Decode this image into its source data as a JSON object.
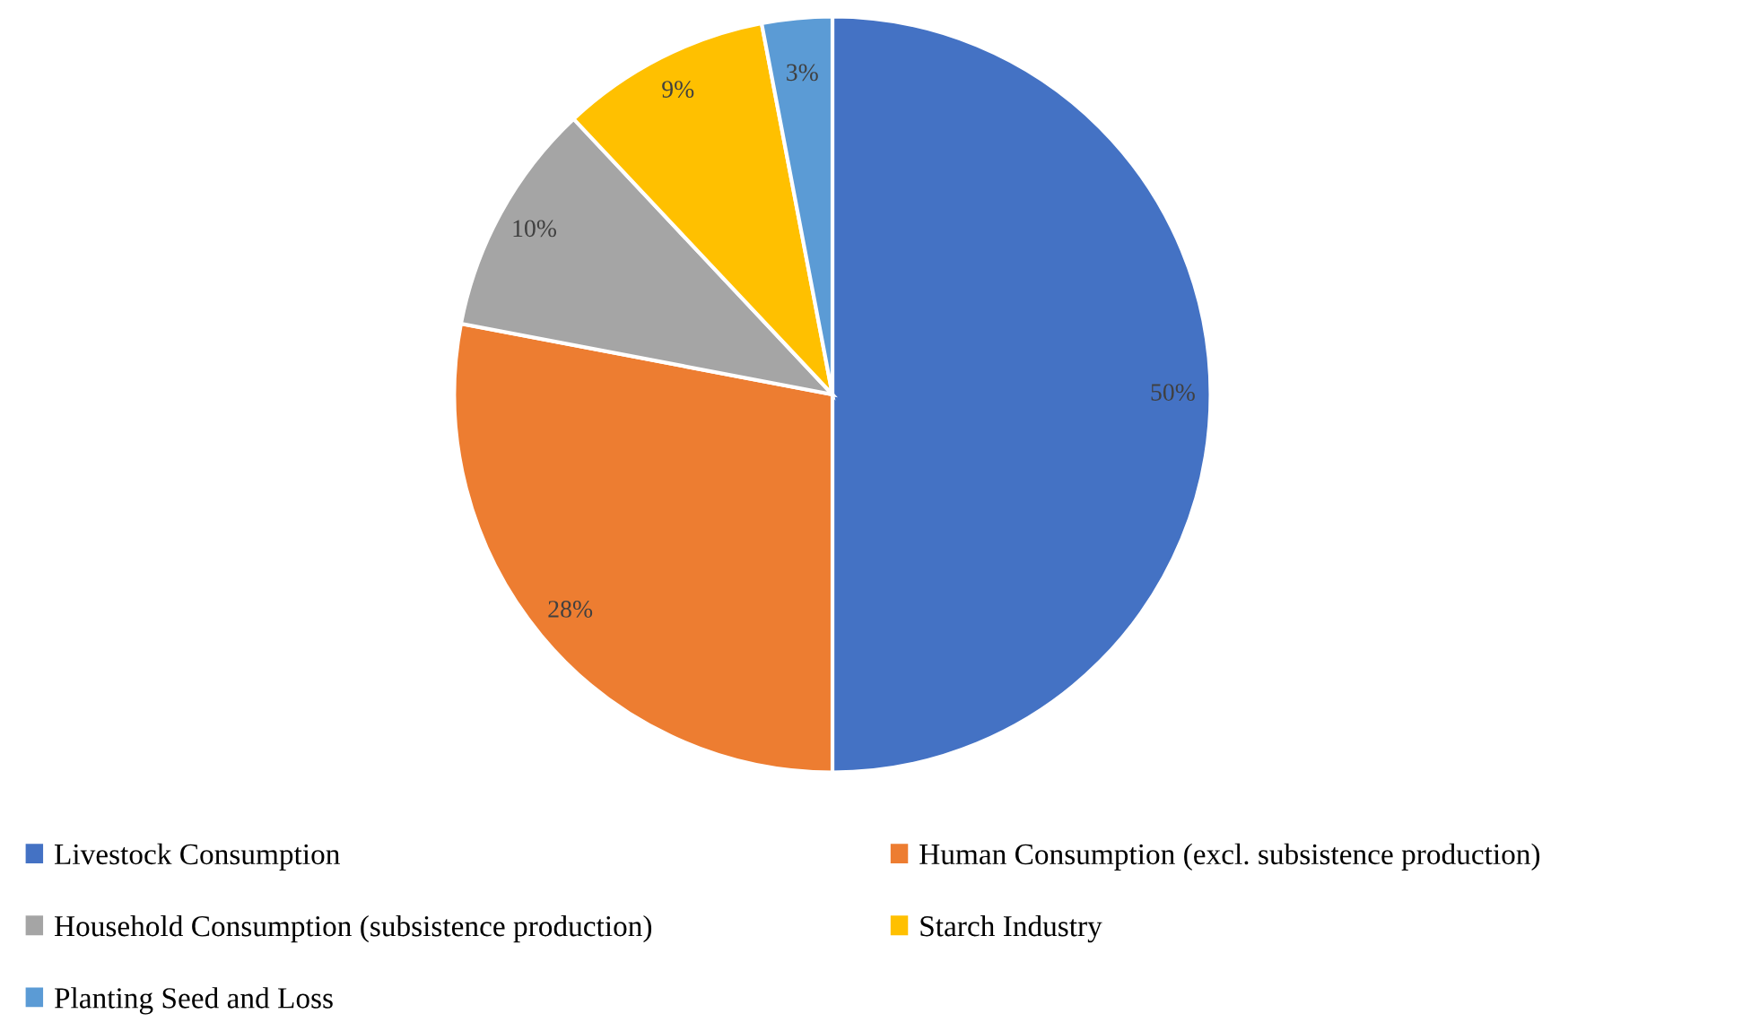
{
  "chart_data": {
    "type": "pie",
    "categories": [
      "Livestock Consumption",
      "Human Consumption (excl. subsistence production)",
      "Household Consumption (subsistence production)",
      "Starch Industry",
      "Planting Seed and Loss"
    ],
    "values": [
      50,
      28,
      10,
      9,
      3
    ],
    "colors": [
      "#4472c4",
      "#ed7d31",
      "#a5a5a5",
      "#ffc000",
      "#5b9bd5"
    ],
    "value_labels": [
      "50%",
      "28%",
      "10%",
      "9%",
      "3%"
    ],
    "legend": "bottom"
  }
}
